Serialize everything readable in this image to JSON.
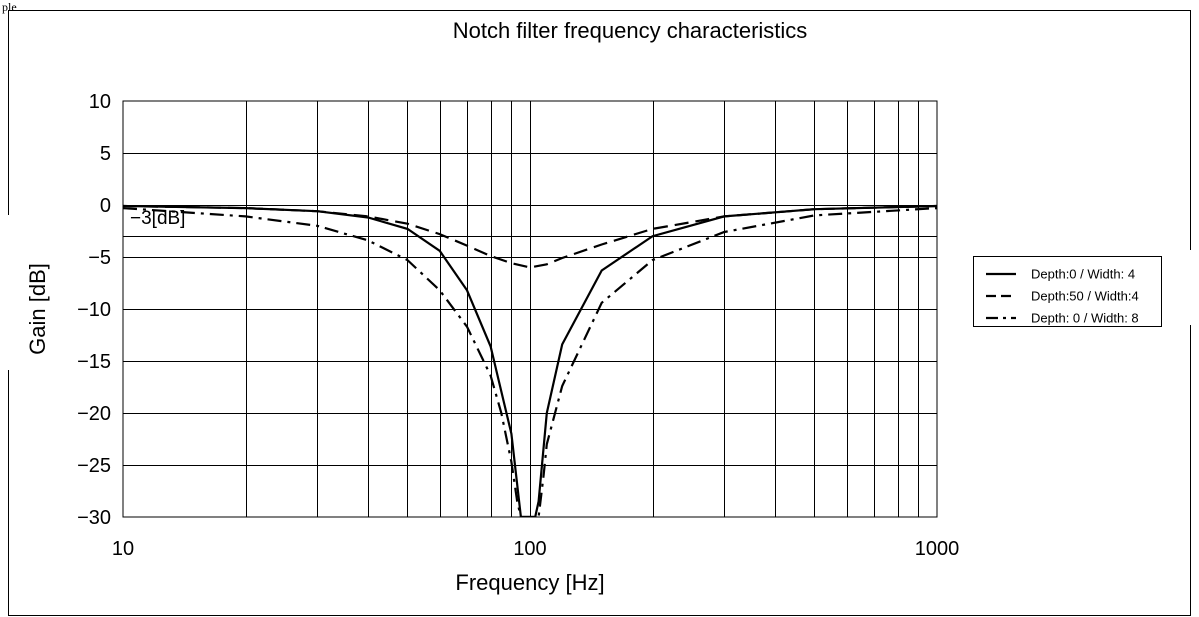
{
  "corner_text": "ple",
  "chart_data": {
    "type": "line",
    "title": "Notch filter frequency characteristics",
    "xlabel": "Frequency [Hz]",
    "ylabel": "Gain [dB]",
    "x_scale": "log",
    "xlim": [
      10,
      1000
    ],
    "ylim": [
      -30,
      10
    ],
    "x_ticks": [
      10,
      100,
      1000
    ],
    "x_tick_labels": [
      "10",
      "100",
      "1000"
    ],
    "y_ticks": [
      10,
      5,
      0,
      -5,
      -10,
      -15,
      -20,
      -25,
      -30
    ],
    "y_tick_labels": [
      "10",
      "5",
      "0",
      "−5",
      "−10",
      "−15",
      "−20",
      "−25",
      "−30"
    ],
    "grid": true,
    "legend_position": "right",
    "reference_line": {
      "y": -3,
      "label": "−3[dB]"
    },
    "series": [
      {
        "name": "Depth:0 / Width: 4",
        "dash": "solid",
        "x": [
          10,
          20,
          30,
          40,
          50,
          60,
          70,
          80,
          90,
          95,
          98,
          100,
          103,
          105,
          110,
          120,
          150,
          200,
          300,
          500,
          1000
        ],
        "y": [
          -0.1,
          -0.3,
          -0.6,
          -1.2,
          -2.3,
          -4.4,
          -8.2,
          -13.6,
          -22,
          -30,
          -30,
          -30,
          -30,
          -28.5,
          -20,
          -13.4,
          -6.3,
          -3,
          -1.1,
          -0.4,
          -0.1
        ]
      },
      {
        "name": "Depth:50 / Width:4",
        "dash": "dash",
        "x": [
          10,
          20,
          30,
          40,
          50,
          60,
          70,
          80,
          90,
          100,
          110,
          120,
          150,
          200,
          300,
          500,
          1000
        ],
        "y": [
          -0.1,
          -0.3,
          -0.6,
          -1.1,
          -1.8,
          -2.8,
          -3.9,
          -4.9,
          -5.6,
          -6,
          -5.7,
          -5.1,
          -3.8,
          -2.3,
          -1.1,
          -0.4,
          -0.1
        ]
      },
      {
        "name": "Depth: 0 / Width: 8",
        "dash": "dashdot",
        "x": [
          10,
          20,
          30,
          40,
          50,
          60,
          70,
          80,
          85,
          90,
          93,
          95,
          100,
          105,
          108,
          110,
          120,
          150,
          200,
          300,
          500,
          1000
        ],
        "y": [
          -0.3,
          -1.1,
          -2,
          -3.4,
          -5.3,
          -8.2,
          -11.7,
          -16.4,
          -20,
          -24.7,
          -28.5,
          -30,
          -30,
          -30,
          -26,
          -23,
          -17.4,
          -9.4,
          -5.3,
          -2.6,
          -1,
          -0.3
        ]
      }
    ]
  }
}
